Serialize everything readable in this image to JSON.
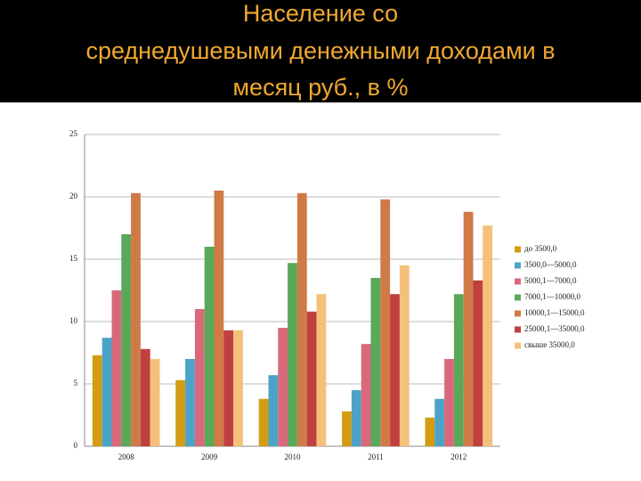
{
  "chart_data": {
    "type": "bar",
    "title": [
      "Население  со",
      "среднедушевыми денежными  доходами  в",
      "месяц  руб.,  в  %"
    ],
    "categories": [
      "2008",
      "2009",
      "2010",
      "2011",
      "2012"
    ],
    "series": [
      {
        "name": "до 3500,0",
        "color": "#d39c12",
        "values": [
          7.3,
          5.3,
          3.8,
          2.8,
          2.3
        ]
      },
      {
        "name": "3500,0—5000,0",
        "color": "#4ba3c7",
        "values": [
          8.7,
          7.0,
          5.7,
          4.5,
          3.8
        ]
      },
      {
        "name": "5000,1—7000,0",
        "color": "#d9697a",
        "values": [
          12.5,
          11.0,
          9.5,
          8.2,
          7.0
        ]
      },
      {
        "name": "7000,1—10000,0",
        "color": "#5aa85a",
        "values": [
          17.0,
          16.0,
          14.7,
          13.5,
          12.2
        ]
      },
      {
        "name": "10000,1—15000,0",
        "color": "#d07a48",
        "values": [
          20.3,
          20.5,
          20.3,
          19.8,
          18.8
        ]
      },
      {
        "name": "25000,1—35000,0",
        "color": "#c04040",
        "values": [
          7.8,
          9.3,
          10.8,
          12.2,
          13.3
        ]
      },
      {
        "name": "свыше 35000,0",
        "color": "#f5c07a",
        "values": [
          7.0,
          9.3,
          12.2,
          14.5,
          17.7
        ]
      }
    ],
    "ylim": [
      0,
      25
    ],
    "yticks": [
      0,
      5,
      10,
      15,
      20,
      25
    ],
    "grid": true,
    "legend": "right"
  }
}
